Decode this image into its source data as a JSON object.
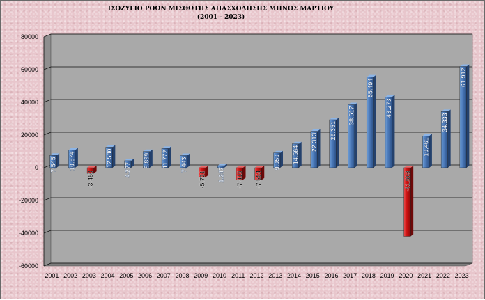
{
  "chart_data": {
    "type": "bar",
    "title": "ΙΣΟΖΥΓΙΟ ΡΟΩΝ ΜΙΣΘΩΤΗΣ ΑΠΑΣΧΟΛΗΣΗΣ ΜΗΝΟΣ ΜΑΡΤΙΟΥ",
    "subtitle": "(2001 - 2023)",
    "xlabel": "",
    "ylabel": "",
    "ylim": [
      -60000,
      80000
    ],
    "yticks": [
      80000,
      60000,
      40000,
      20000,
      0,
      -20000,
      -40000,
      -60000
    ],
    "grid": true,
    "categories": [
      "2001",
      "2002",
      "2003",
      "2004",
      "2005",
      "2006",
      "2007",
      "2008",
      "2009",
      "2010",
      "2011",
      "2012",
      "2013",
      "2014",
      "2015",
      "2016",
      "2017",
      "2018",
      "2019",
      "2020",
      "2021",
      "2022",
      "2023"
    ],
    "values": [
      7545,
      10874,
      -3450,
      12580,
      4277,
      9899,
      11772,
      7443,
      -5731,
      1247,
      -7419,
      -7564,
      9050,
      14564,
      22313,
      29351,
      38517,
      55494,
      43273,
      -41903,
      19461,
      34333,
      61912
    ],
    "labels": [
      "7.545",
      "10.874",
      "-3.450",
      "12.580",
      "4.277",
      "9.899",
      "11.772",
      "7.443",
      "-5.731",
      "1.247",
      "-7.419",
      "-7.564",
      "9.050",
      "14.564",
      "22.313",
      "29.351",
      "38.517",
      "55.494",
      "43.273",
      "-41.903",
      "19.461",
      "34.333",
      "61.912"
    ],
    "colors": {
      "positive": "#4a78b8",
      "negative": "#cc1111",
      "plot_bg": "#a9a9a9"
    }
  }
}
